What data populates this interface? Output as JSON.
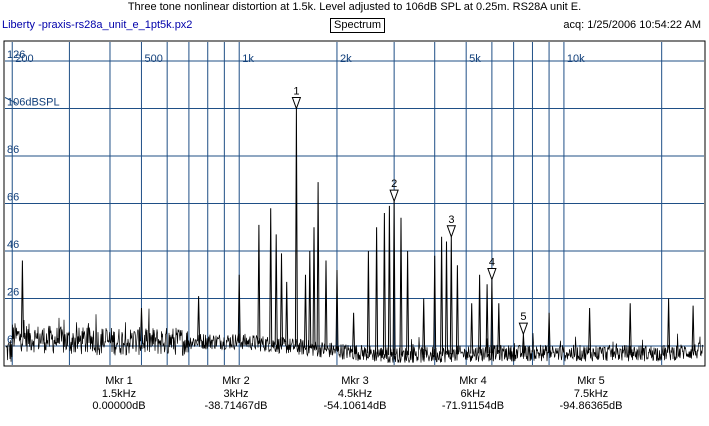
{
  "window": {
    "title": "Three tone nonlinear distortion at 1.5k. Level adjusted to 106dB SPL at 0.25m. RS28A unit E.",
    "app_name": "Liberty -praxis-",
    "file_name": "rs28a_unit_e_1pt5k.px2",
    "view_button": "Spectrum",
    "acq": "acq: 1/25/2006 10:54:22 AM"
  },
  "chart_data": {
    "type": "line",
    "title": "Three tone nonlinear distortion at 1.5k. Level adjusted to 106dB SPL at 0.25m. RS28A unit E.",
    "xscale": "log",
    "xlim": [
      190,
      27000
    ],
    "ylim": [
      -2,
      134
    ],
    "x_tick_labels": [
      {
        "value": 200,
        "label": "200"
      },
      {
        "value": 500,
        "label": "500"
      },
      {
        "value": 1000,
        "label": "1k"
      },
      {
        "value": 2000,
        "label": "2k"
      },
      {
        "value": 5000,
        "label": "5k"
      },
      {
        "value": 10000,
        "label": "10k"
      }
    ],
    "x_gridlines": [
      300,
      400,
      600,
      700,
      800,
      900,
      3000,
      4000,
      6000,
      7000,
      8000,
      9000,
      20000
    ],
    "y_tick_labels": [
      {
        "value": 126,
        "label": "126"
      },
      {
        "value": 106,
        "label": "106dBSPL"
      },
      {
        "value": 86,
        "label": "86"
      },
      {
        "value": 66,
        "label": "66"
      },
      {
        "value": 46,
        "label": "46"
      },
      {
        "value": 26,
        "label": "26"
      },
      {
        "value": 6,
        "label": "6"
      }
    ],
    "grid": true,
    "reference_level": {
      "value": 106,
      "label": "106dBSPL"
    },
    "markers_on_plot": [
      {
        "label": "1",
        "x": 1500,
        "y": 106
      },
      {
        "label": "2",
        "x": 3000,
        "y": 67
      },
      {
        "label": "3",
        "x": 4500,
        "y": 52
      },
      {
        "label": "4",
        "x": 6000,
        "y": 34
      },
      {
        "label": "5",
        "x": 7500,
        "y": 11
      }
    ],
    "series": [
      {
        "line_color": "#000000",
        "noise_floor": [
          [
            200,
            10
          ],
          [
            300,
            8
          ],
          [
            500,
            8
          ],
          [
            1000,
            8
          ],
          [
            2000,
            4
          ],
          [
            3000,
            2
          ],
          [
            6000,
            3
          ],
          [
            10000,
            3
          ],
          [
            20000,
            3
          ],
          [
            27000,
            4
          ]
        ],
        "peaks": [
          {
            "x": 215,
            "y": 42
          },
          {
            "x": 500,
            "y": 22
          },
          {
            "x": 750,
            "y": 27
          },
          {
            "x": 1000,
            "y": 36
          },
          {
            "x": 1150,
            "y": 57
          },
          {
            "x": 1250,
            "y": 64
          },
          {
            "x": 1300,
            "y": 53
          },
          {
            "x": 1350,
            "y": 45
          },
          {
            "x": 1400,
            "y": 33
          },
          {
            "x": 1500,
            "y": 106
          },
          {
            "x": 1600,
            "y": 36
          },
          {
            "x": 1650,
            "y": 46
          },
          {
            "x": 1700,
            "y": 56
          },
          {
            "x": 1750,
            "y": 75
          },
          {
            "x": 1850,
            "y": 42
          },
          {
            "x": 2000,
            "y": 38
          },
          {
            "x": 2250,
            "y": 20
          },
          {
            "x": 2500,
            "y": 46
          },
          {
            "x": 2650,
            "y": 56
          },
          {
            "x": 2800,
            "y": 62
          },
          {
            "x": 2900,
            "y": 65
          },
          {
            "x": 3000,
            "y": 67
          },
          {
            "x": 3150,
            "y": 60
          },
          {
            "x": 3300,
            "y": 46
          },
          {
            "x": 3700,
            "y": 26
          },
          {
            "x": 4000,
            "y": 44
          },
          {
            "x": 4200,
            "y": 52
          },
          {
            "x": 4350,
            "y": 50
          },
          {
            "x": 4500,
            "y": 52
          },
          {
            "x": 4700,
            "y": 40
          },
          {
            "x": 5200,
            "y": 24
          },
          {
            "x": 5500,
            "y": 36
          },
          {
            "x": 5800,
            "y": 32
          },
          {
            "x": 6000,
            "y": 34
          },
          {
            "x": 6300,
            "y": 24
          },
          {
            "x": 7500,
            "y": 11
          },
          {
            "x": 9000,
            "y": 20
          },
          {
            "x": 12000,
            "y": 22
          },
          {
            "x": 16000,
            "y": 24
          },
          {
            "x": 21000,
            "y": 26
          },
          {
            "x": 25000,
            "y": 23
          }
        ]
      }
    ]
  },
  "readouts": [
    {
      "name": "Mkr 1",
      "freq": "1.5kHz",
      "level": "0.00000dB"
    },
    {
      "name": "Mkr 2",
      "freq": "3kHz",
      "level": "-38.71467dB"
    },
    {
      "name": "Mkr 3",
      "freq": "4.5kHz",
      "level": "-54.10614dB"
    },
    {
      "name": "Mkr 4",
      "freq": "6kHz",
      "level": "-71.91154dB"
    },
    {
      "name": "Mkr 5",
      "freq": "7.5kHz",
      "level": "-94.86365dB"
    }
  ],
  "colors": {
    "grid": "#1f4f86",
    "trace": "#000000",
    "tick_text": "#113f7a",
    "header_link": "#0000aa"
  }
}
